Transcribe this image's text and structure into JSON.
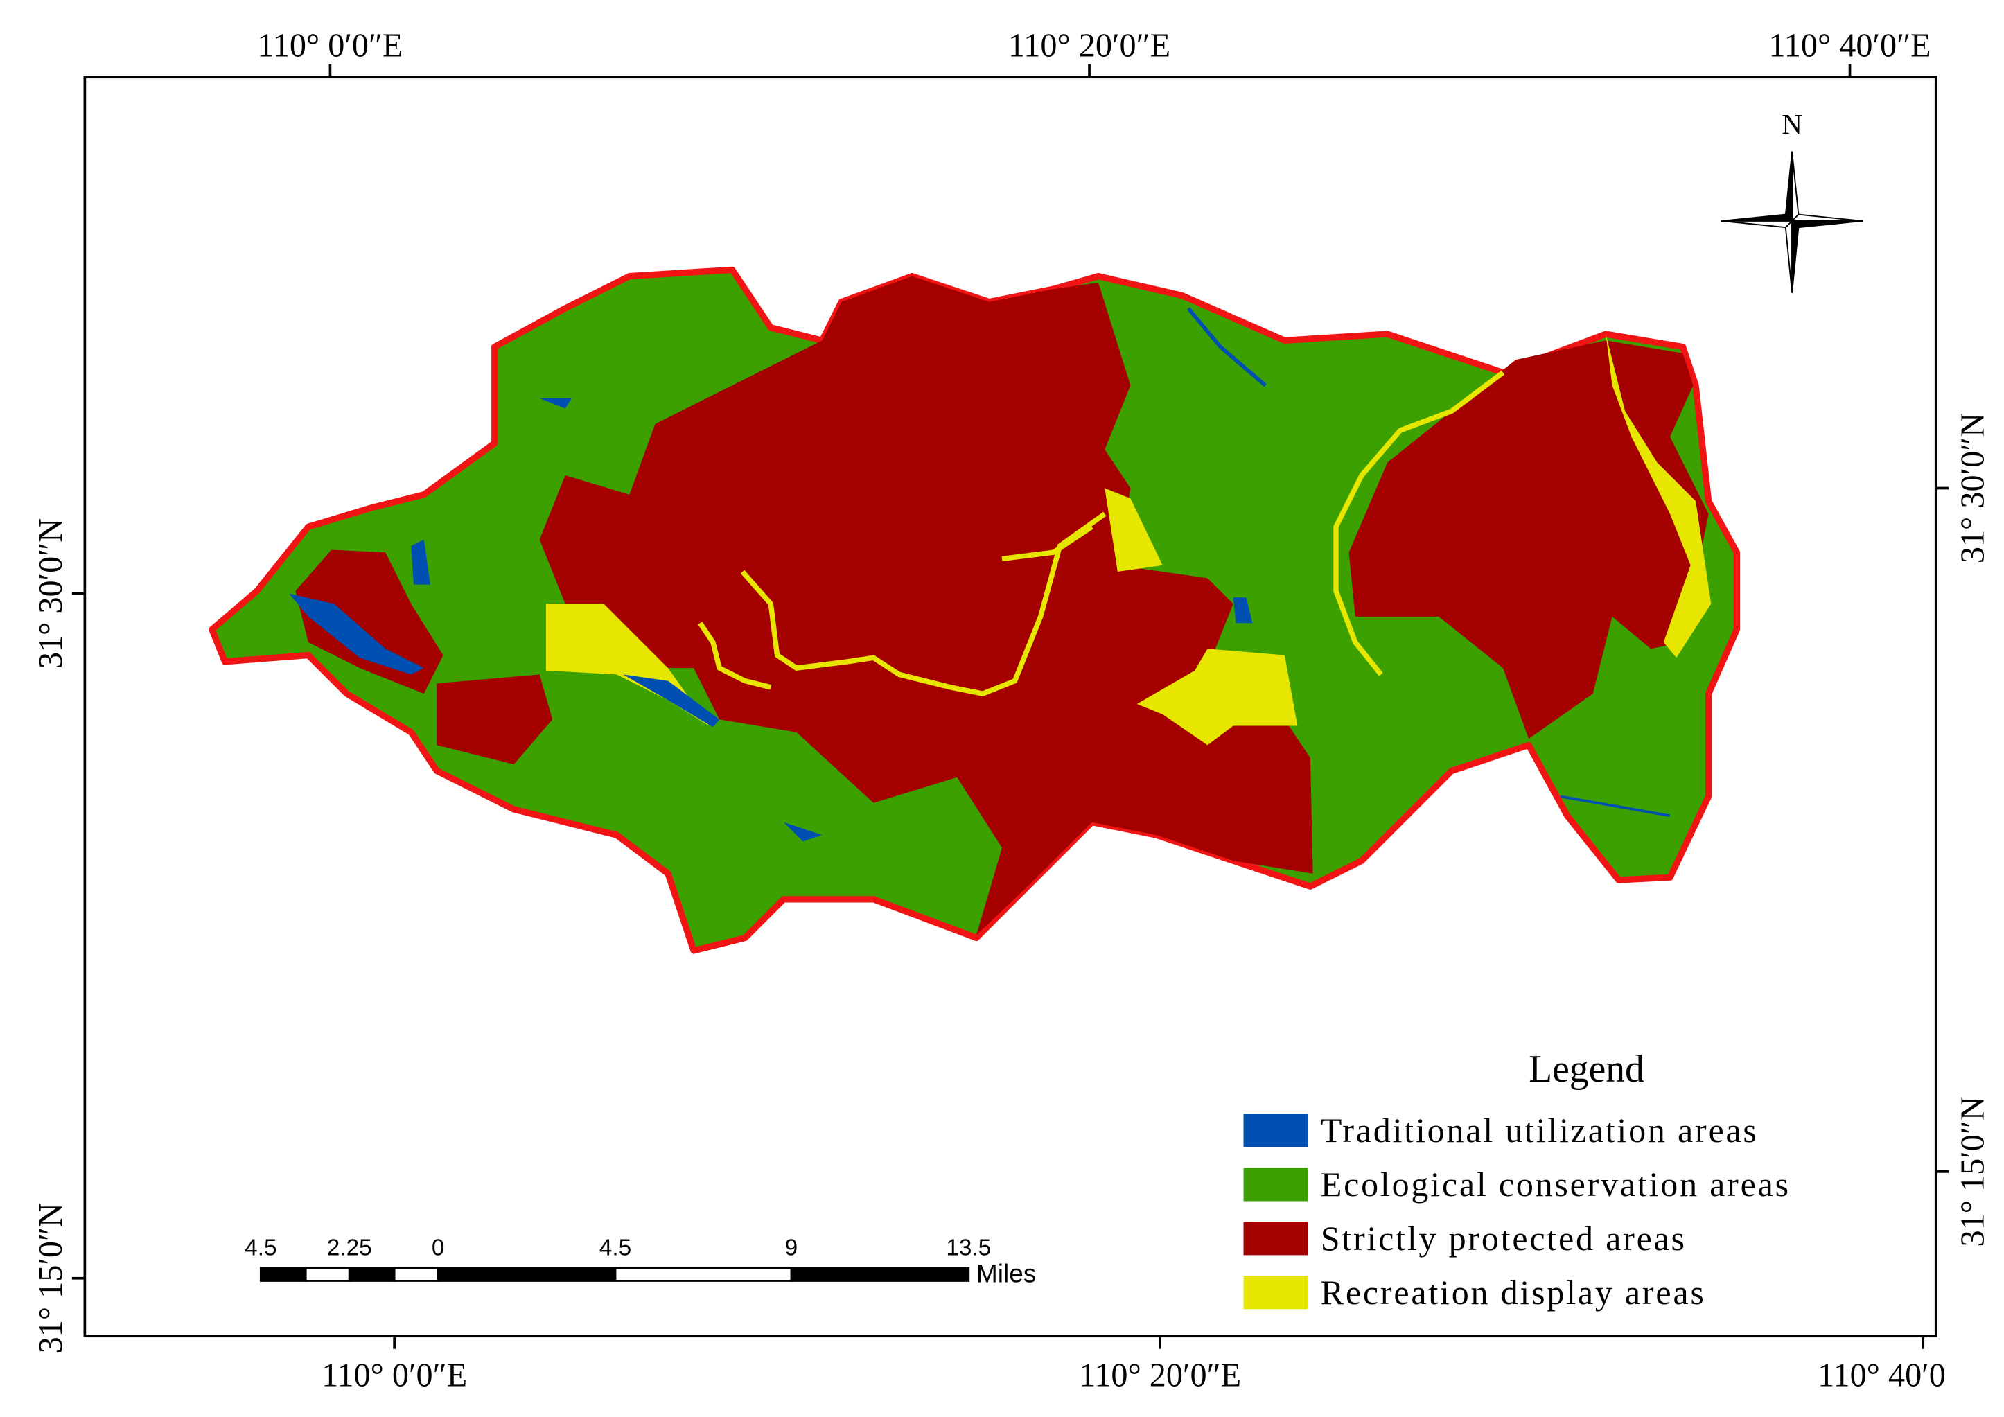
{
  "map": {
    "top_labels": [
      "110° 0′0″E",
      "110° 20′0″E",
      "110° 40′0″E"
    ],
    "bottom_labels": [
      "110° 0′0″E",
      "110° 20′0″E",
      "110° 40′0"
    ],
    "left_labels": [
      "31° 30′0″N",
      "31° 15′0″N"
    ],
    "right_labels": [
      "31° 30′0″N",
      "31° 15′0″N"
    ],
    "north": "N",
    "legend": {
      "title": "Legend",
      "items": [
        {
          "label": "Traditional utilization areas",
          "color": "#0050b4"
        },
        {
          "label": "Ecological conservation areas",
          "color": "#3ca000"
        },
        {
          "label": "Strictly protected areas",
          "color": "#a50000"
        },
        {
          "label": "Recreation display areas",
          "color": "#e6e600"
        }
      ]
    },
    "scale_bar": {
      "labels": [
        "4.5",
        "2.25",
        "0",
        "4.5",
        "9",
        "13.5"
      ],
      "unit": "Miles"
    }
  }
}
